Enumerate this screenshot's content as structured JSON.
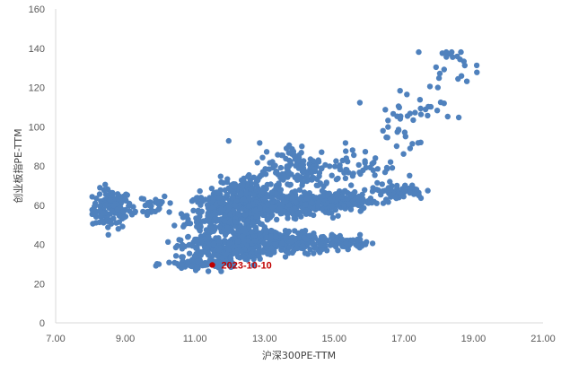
{
  "chart_data": {
    "type": "scatter",
    "title": "",
    "xlabel": "沪深300PE-TTM",
    "ylabel": "创业板指PE-TTM",
    "xlim": [
      7.0,
      21.0
    ],
    "ylim": [
      0,
      160
    ],
    "xticks": [
      "7.00",
      "9.00",
      "11.00",
      "13.00",
      "15.00",
      "17.00",
      "19.00",
      "21.00"
    ],
    "yticks": [
      "0",
      "20",
      "40",
      "60",
      "80",
      "100",
      "120",
      "140",
      "160"
    ],
    "grid": false,
    "legend": "none",
    "colors": {
      "series": "#4f81bd",
      "highlight": "#c00000",
      "axis": "#d9d9d9"
    },
    "clusters": [
      {
        "cx": 8.6,
        "cy": 58,
        "sx": 0.28,
        "sy": 5,
        "n": 120
      },
      {
        "cx": 9.6,
        "cy": 60,
        "sx": 0.35,
        "sy": 3,
        "n": 30
      },
      {
        "cx": 12.0,
        "cy": 55,
        "sx": 0.6,
        "sy": 6,
        "n": 420
      },
      {
        "cx": 12.6,
        "cy": 66,
        "sx": 0.5,
        "sy": 5,
        "n": 140
      },
      {
        "cx": 11.8,
        "cy": 38,
        "sx": 0.6,
        "sy": 3,
        "n": 220
      },
      {
        "cx": 13.1,
        "cy": 42,
        "sx": 0.5,
        "sy": 3,
        "n": 140
      },
      {
        "cx": 14.3,
        "cy": 41,
        "sx": 0.55,
        "sy": 2.5,
        "n": 140
      },
      {
        "cx": 15.4,
        "cy": 41,
        "sx": 0.3,
        "sy": 1.5,
        "n": 30
      },
      {
        "cx": 11.2,
        "cy": 30,
        "sx": 0.5,
        "sy": 1.5,
        "n": 90
      },
      {
        "cx": 13.8,
        "cy": 60,
        "sx": 0.7,
        "sy": 3,
        "n": 210
      },
      {
        "cx": 15.1,
        "cy": 62,
        "sx": 0.5,
        "sy": 2.5,
        "n": 150
      },
      {
        "cx": 14.0,
        "cy": 78,
        "sx": 0.6,
        "sy": 7,
        "n": 140
      },
      {
        "cx": 15.8,
        "cy": 80,
        "sx": 0.5,
        "sy": 6,
        "n": 40
      },
      {
        "cx": 16.8,
        "cy": 67,
        "sx": 0.4,
        "sy": 2,
        "n": 60
      },
      {
        "cx": 17.0,
        "cy": 105,
        "sx": 0.6,
        "sy": 10,
        "n": 45
      },
      {
        "cx": 18.4,
        "cy": 132,
        "sx": 0.4,
        "sy": 4,
        "n": 22
      }
    ],
    "highlight": {
      "label": "2023-10-10",
      "x": 11.5,
      "y": 29.5
    }
  }
}
